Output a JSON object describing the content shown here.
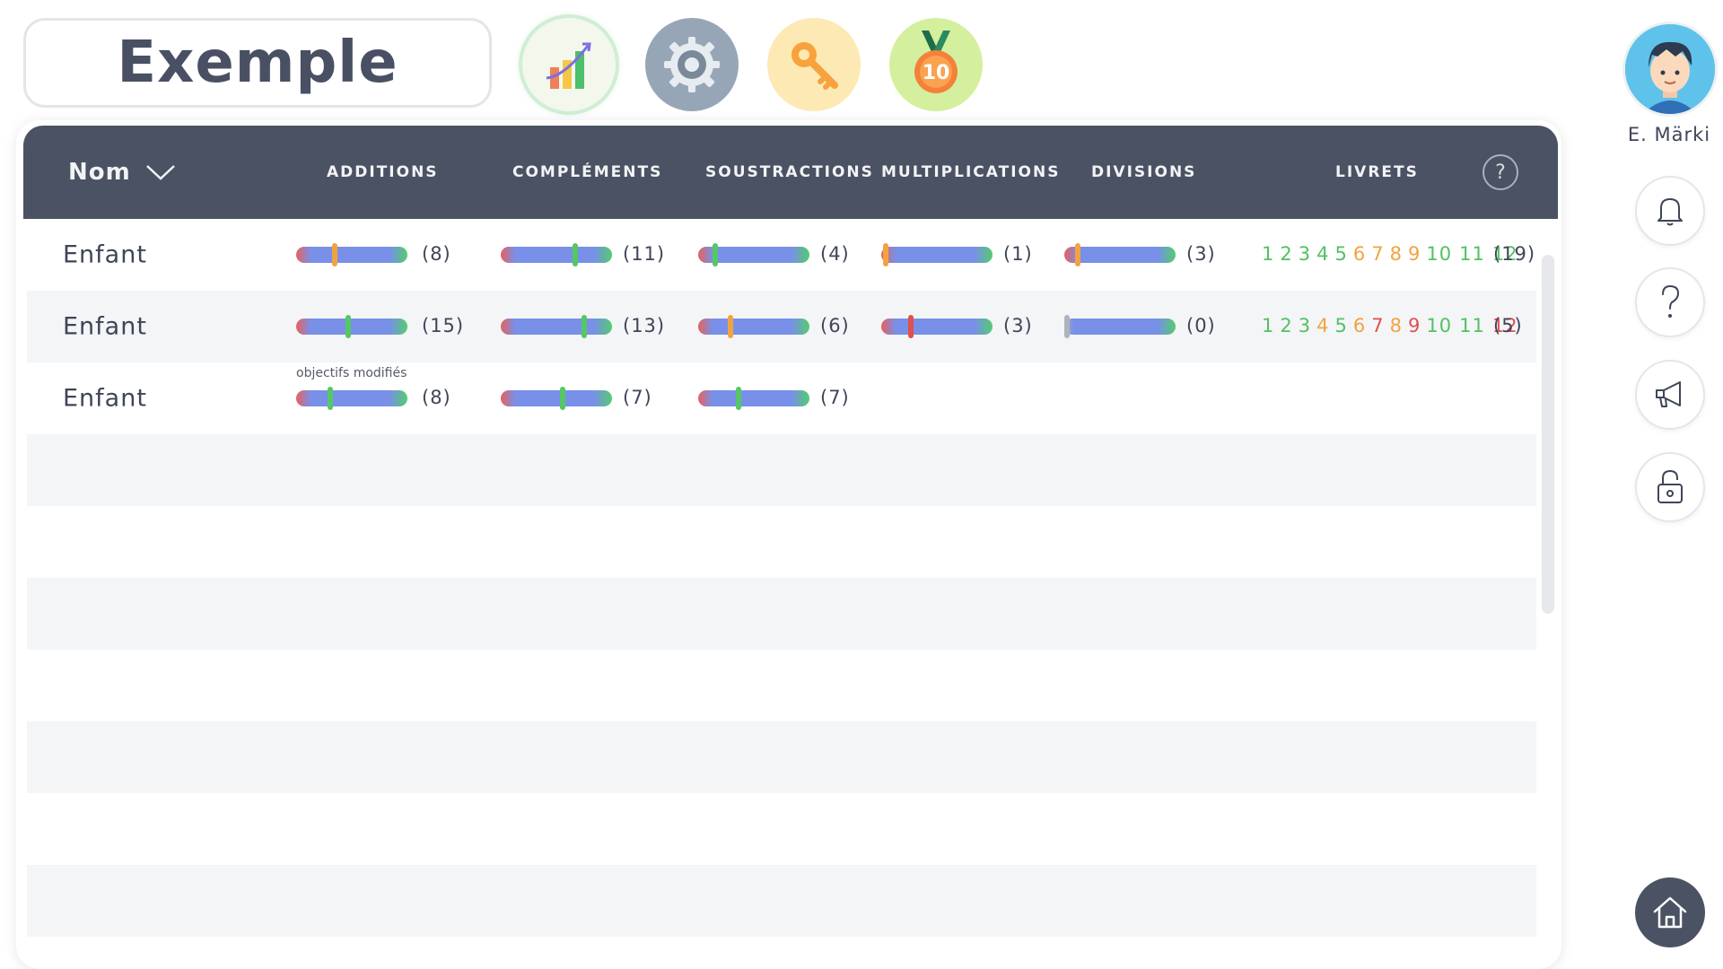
{
  "header": {
    "title": "Exemple",
    "top_buttons": [
      {
        "name": "statistics",
        "icon": "bar-chart-icon"
      },
      {
        "name": "settings",
        "icon": "gear-icon"
      },
      {
        "name": "key",
        "icon": "key-icon"
      },
      {
        "name": "medal",
        "icon": "medal-icon",
        "label": "10"
      }
    ]
  },
  "table": {
    "columns": {
      "nom": "Nom",
      "additions": "ADDITIONS",
      "complements": "COMPLÉMENTS",
      "soustractions": "SOUSTRACTIONS",
      "multiplications": "MULTIPLICATIONS",
      "divisions": "DIVISIONS",
      "livrets": "LIVRETS",
      "help": "?"
    },
    "marker_colors": {
      "orange": "#f2a340",
      "green": "#56c765",
      "red": "#e0504f",
      "grey": "#b0b3bb"
    },
    "livret_colors": {
      "green": "#52c163",
      "orange": "#f2a340",
      "red": "#e0504f"
    },
    "rows": [
      {
        "name": "Enfant",
        "additions": {
          "count": "(8)",
          "level": 0.35,
          "marker": "orange"
        },
        "complements": {
          "count": "(11)",
          "level": 0.67,
          "marker": "green"
        },
        "soustractions": {
          "count": "(4)",
          "level": 0.15,
          "marker": "green"
        },
        "multiplications": {
          "count": "(1)",
          "level": 0.04,
          "marker": "orange"
        },
        "divisions": {
          "count": "(3)",
          "level": 0.12,
          "marker": "orange"
        },
        "livrets": {
          "items": [
            {
              "n": "1",
              "c": "green"
            },
            {
              "n": "2",
              "c": "green"
            },
            {
              "n": "3",
              "c": "green"
            },
            {
              "n": "4",
              "c": "green"
            },
            {
              "n": "5",
              "c": "green"
            },
            {
              "n": "6",
              "c": "orange"
            },
            {
              "n": "7",
              "c": "orange"
            },
            {
              "n": "8",
              "c": "orange"
            },
            {
              "n": "9",
              "c": "orange"
            },
            {
              "n": "10",
              "c": "green"
            },
            {
              "n": "11",
              "c": "green"
            },
            {
              "n": "12",
              "c": "green"
            }
          ],
          "total": "(19)"
        }
      },
      {
        "name": "Enfant",
        "additions": {
          "count": "(15)",
          "level": 0.47,
          "marker": "green"
        },
        "complements": {
          "count": "(13)",
          "level": 0.75,
          "marker": "green"
        },
        "soustractions": {
          "count": "(6)",
          "level": 0.29,
          "marker": "orange"
        },
        "multiplications": {
          "count": "(3)",
          "level": 0.27,
          "marker": "red"
        },
        "divisions": {
          "count": "(0)",
          "level": 0.0,
          "marker": "grey"
        },
        "livrets": {
          "items": [
            {
              "n": "1",
              "c": "green"
            },
            {
              "n": "2",
              "c": "green"
            },
            {
              "n": "3",
              "c": "green"
            },
            {
              "n": "4",
              "c": "orange"
            },
            {
              "n": "5",
              "c": "green"
            },
            {
              "n": "6",
              "c": "orange"
            },
            {
              "n": "7",
              "c": "red"
            },
            {
              "n": "8",
              "c": "orange"
            },
            {
              "n": "9",
              "c": "red"
            },
            {
              "n": "10",
              "c": "green"
            },
            {
              "n": "11",
              "c": "green"
            },
            {
              "n": "12",
              "c": "red"
            }
          ],
          "total": "(5)"
        }
      },
      {
        "name": "Enfant",
        "note": "objectifs modifiés",
        "additions": {
          "count": "(8)",
          "level": 0.31,
          "marker": "green"
        },
        "complements": {
          "count": "(7)",
          "level": 0.56,
          "marker": "green"
        },
        "soustractions": {
          "count": "(7)",
          "level": 0.36,
          "marker": "green"
        }
      }
    ]
  },
  "sidebar": {
    "user_name": "E. Märki",
    "buttons": [
      {
        "name": "notifications",
        "icon": "bell-icon"
      },
      {
        "name": "help",
        "icon": "question-icon"
      },
      {
        "name": "announcements",
        "icon": "megaphone-icon"
      },
      {
        "name": "lock",
        "icon": "unlock-icon"
      },
      {
        "name": "home",
        "icon": "home-icon"
      }
    ]
  }
}
